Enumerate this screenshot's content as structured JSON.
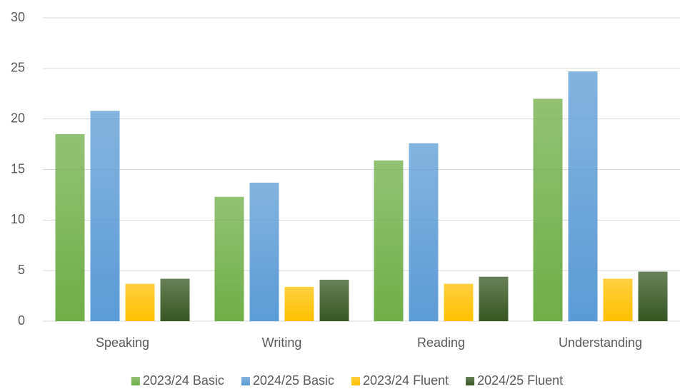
{
  "chart_data": {
    "type": "bar",
    "categories": [
      "Speaking",
      "Writing",
      "Reading",
      "Understanding"
    ],
    "series": [
      {
        "name": "2023/24 Basic",
        "color": "#70ad47",
        "values": [
          18.5,
          12.3,
          15.9,
          22.0
        ]
      },
      {
        "name": "2024/25 Basic",
        "color": "#5b9bd5",
        "values": [
          20.8,
          13.7,
          17.6,
          24.7
        ]
      },
      {
        "name": "2023/24 Fluent",
        "color": "#ffc000",
        "values": [
          3.7,
          3.4,
          3.7,
          4.2
        ]
      },
      {
        "name": "2024/25 Fluent",
        "color": "#375623",
        "values": [
          4.2,
          4.1,
          4.4,
          4.9
        ]
      }
    ],
    "ylim": [
      0,
      30
    ],
    "yticks": [
      0,
      5,
      10,
      15,
      20,
      25,
      30
    ],
    "grid": true,
    "legend": "bottom"
  }
}
